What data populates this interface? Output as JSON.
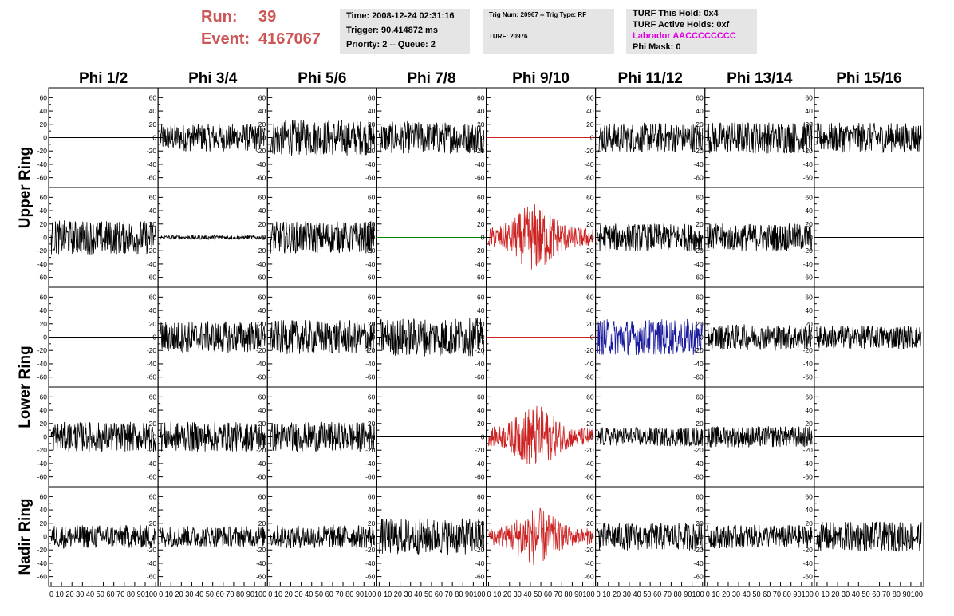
{
  "header": {
    "run_label": "Run:",
    "run_value": "39",
    "event_label": "Event:",
    "event_value": "4167067"
  },
  "info_time": {
    "time": "Time: 2008-12-24 02:31:16",
    "trigger": "Trigger: 90.414872 ms",
    "priority": "Priority: 2 -- Queue: 2"
  },
  "info_trig": {
    "trig": "Trig Num: 20967 -- Trig Type: RF",
    "turf": "TURF: 20976"
  },
  "info_turf": {
    "this_hold": "TURF This Hold: 0x4",
    "active_holds": "TURF Active Holds: 0xf",
    "labrador": "Labrador AACCCCCCCC",
    "phi_mask": "Phi Mask: 0"
  },
  "colors": {
    "accent_run": "#cc5555",
    "labrador": "#e000e0",
    "trace_default": "#000000",
    "trace_red": "#cc2222",
    "trace_green": "#008800",
    "trace_blue": "#1a1a9c",
    "panel_bg": "#e5e5e5"
  },
  "chart_data": {
    "type": "line",
    "columns": [
      "Phi 1/2",
      "Phi 3/4",
      "Phi 5/6",
      "Phi 7/8",
      "Phi 9/10",
      "Phi 11/12",
      "Phi 13/14",
      "Phi 15/16"
    ],
    "rings": [
      {
        "label": "Upper Ring",
        "rows": [
          0,
          1
        ]
      },
      {
        "label": "Lower Ring",
        "rows": [
          2,
          3
        ]
      },
      {
        "label": "Nadir Ring",
        "rows": [
          4
        ]
      }
    ],
    "ylim": [
      -70,
      70
    ],
    "yticks": [
      -60,
      -40,
      -20,
      0,
      20,
      40,
      60
    ],
    "xlim": [
      0,
      100
    ],
    "xticks": [
      0,
      10,
      20,
      30,
      40,
      50,
      60,
      70,
      80,
      90,
      100
    ],
    "xtick_label_text": "0 10 20 30 40 50 60 70 80 90100",
    "panels": [
      [
        {
          "c": "#000000",
          "a": 0
        },
        {
          "c": "#000000",
          "a": 13
        },
        {
          "c": "#000000",
          "a": 17
        },
        {
          "c": "#000000",
          "a": 15
        },
        {
          "c": "#cc2222",
          "a": 0
        },
        {
          "c": "#000000",
          "a": 14
        },
        {
          "c": "#000000",
          "a": 15
        },
        {
          "c": "#000000",
          "a": 14
        }
      ],
      [
        {
          "c": "#000000",
          "a": 16
        },
        {
          "c": "#000000",
          "a": 2
        },
        {
          "c": "#000000",
          "a": 15
        },
        {
          "c": "#008800",
          "a": 0
        },
        {
          "c": "#cc2222",
          "a": 26
        },
        {
          "c": "#000000",
          "a": 13
        },
        {
          "c": "#000000",
          "a": 13
        },
        {
          "c": "#000000",
          "a": 0
        }
      ],
      [
        {
          "c": "#000000",
          "a": 0
        },
        {
          "c": "#000000",
          "a": 15
        },
        {
          "c": "#000000",
          "a": 16
        },
        {
          "c": "#000000",
          "a": 18
        },
        {
          "c": "#cc2222",
          "a": 0
        },
        {
          "c": "#1a1a9c",
          "a": 17
        },
        {
          "c": "#000000",
          "a": 12
        },
        {
          "c": "#000000",
          "a": 11
        }
      ],
      [
        {
          "c": "#000000",
          "a": 14
        },
        {
          "c": "#000000",
          "a": 14
        },
        {
          "c": "#000000",
          "a": 14
        },
        {
          "c": "#000000",
          "a": 0
        },
        {
          "c": "#cc2222",
          "a": 24
        },
        {
          "c": "#000000",
          "a": 9
        },
        {
          "c": "#000000",
          "a": 10
        },
        {
          "c": "#000000",
          "a": 0
        }
      ],
      [
        {
          "c": "#000000",
          "a": 11
        },
        {
          "c": "#000000",
          "a": 10
        },
        {
          "c": "#000000",
          "a": 11
        },
        {
          "c": "#000000",
          "a": 17
        },
        {
          "c": "#cc2222",
          "a": 22
        },
        {
          "c": "#000000",
          "a": 13
        },
        {
          "c": "#000000",
          "a": 11
        },
        {
          "c": "#000000",
          "a": 14
        }
      ]
    ]
  }
}
